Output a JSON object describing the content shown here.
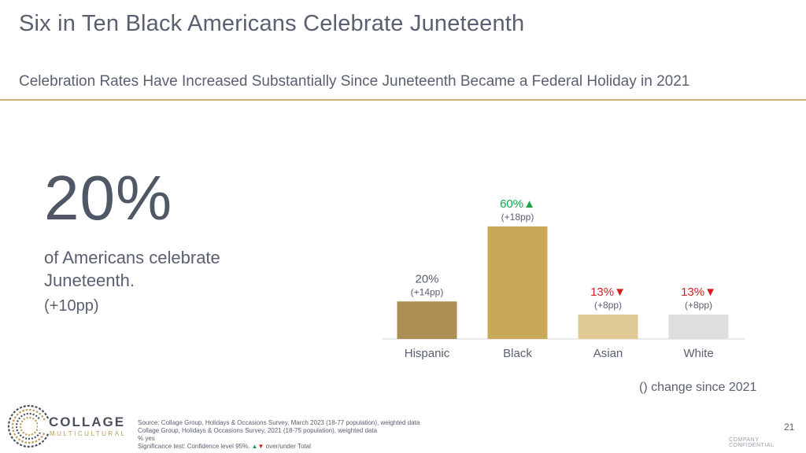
{
  "header": {
    "title": "Six in Ten Black Americans Celebrate Juneteenth",
    "subtitle": "Celebration Rates Have Increased Substantially Since Juneteenth Became a Federal Holiday in 2021"
  },
  "stat": {
    "value": "20%",
    "text": "of Americans celebrate Juneteenth.",
    "change": "(+10pp)"
  },
  "chart_data": {
    "type": "bar",
    "categories": [
      "Hispanic",
      "Black",
      "Asian",
      "White"
    ],
    "values": [
      20,
      60,
      13,
      13
    ],
    "value_labels": [
      "20%",
      "60%",
      "13%",
      "13%"
    ],
    "change_labels": [
      "(+14pp)",
      "(+18pp)",
      "(+8pp)",
      "(+8pp)"
    ],
    "significance": [
      "none",
      "up",
      "down",
      "down"
    ],
    "bar_colors": [
      "#ad8f55",
      "#c9a957",
      "#e0c995",
      "#dedede"
    ],
    "ylim": [
      0,
      70
    ],
    "grid": false,
    "legend": "none",
    "note": "() change since 2021"
  },
  "colors": {
    "up": "#1fa34a",
    "down": "#d22020",
    "neutral_label": "#5a6070",
    "accent_rule": "#c8b070"
  },
  "footer": {
    "logo_name": "COLLAGE",
    "logo_sub": "MULTICULTURAL",
    "source_line1": "Source: Collage Group, Holidays & Occasions Survey, March 2023 (18-77 population), weighted data",
    "source_line2": "Collage Group, Holidays & Occasions Survey, 2021 (18-75 population), weighted data",
    "source_line3": "% yes",
    "sig_prefix": "Significance test: Confidence level 95%.",
    "sig_up_glyph": "▲",
    "sig_down_glyph": "▼",
    "sig_suffix": "over/under Total",
    "page_number": "21",
    "confidential": "COMPANY CONFIDENTIAL"
  }
}
